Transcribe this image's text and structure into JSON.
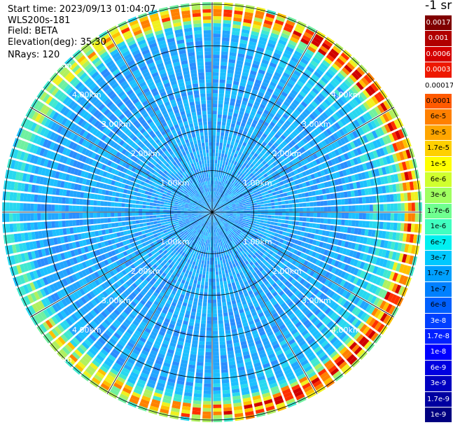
{
  "header": {
    "start_time": "Start time: 2023/09/13 01:04:07",
    "instrument": "WLS200s-181",
    "field": "Field: BETA",
    "elevation": "Elevation(deg): 35.30",
    "nrays": "NRays: 120"
  },
  "colorbar": {
    "unit_label": "-1 sr",
    "labels": [
      "0.0017",
      "0.001",
      "0.0006",
      "0.0003",
      "0.00017",
      "0.0001",
      "6e-5",
      "3e-5",
      "1.7e-5",
      "1e-5",
      "6e-6",
      "3e-6",
      "1.7e-6",
      "1e-6",
      "6e-7",
      "3e-7",
      "1.7e-7",
      "1e-7",
      "6e-8",
      "3e-8",
      "1.7e-8",
      "1e-8",
      "6e-9",
      "3e-9",
      "1.7e-9",
      "1e-9"
    ],
    "colors": [
      "#800000",
      "#b00000",
      "#d40000",
      "#ee1800",
      "#ffffff",
      "#ff5a00",
      "#ff8000",
      "#ffa600",
      "#ffd000",
      "#ffff00",
      "#d0ff2e",
      "#a0ff60",
      "#70ff90",
      "#40ffc0",
      "#00f0f0",
      "#00c8ff",
      "#00a0ff",
      "#0080ff",
      "#0060ff",
      "#0040ff",
      "#0020ff",
      "#0000ff",
      "#0000e0",
      "#0000c0",
      "#0000a0",
      "#000080"
    ]
  },
  "chart_data": {
    "type": "ppi",
    "field": "BETA",
    "unit": "sr-1",
    "elevation_deg": 35.3,
    "n_rays": 120,
    "range_rings_km": [
      1.0,
      2.0,
      3.0,
      4.0,
      5.0
    ],
    "ring_labels": [
      "1.00km",
      "2.00km",
      "3.00km",
      "4.00km",
      "5.00km"
    ],
    "spoke_angles_deg": [
      0,
      30,
      60,
      90,
      120,
      150
    ],
    "max_range_km": 5.0,
    "data_summary": "Low values (blue/cyan, about 1e-8 to 1e-7) inside 4 km; high values (yellow/red, about 1e-6 to 1e-4) concentrated in a band near 4.5-5.0 km, strongest toward the north, east and south."
  }
}
